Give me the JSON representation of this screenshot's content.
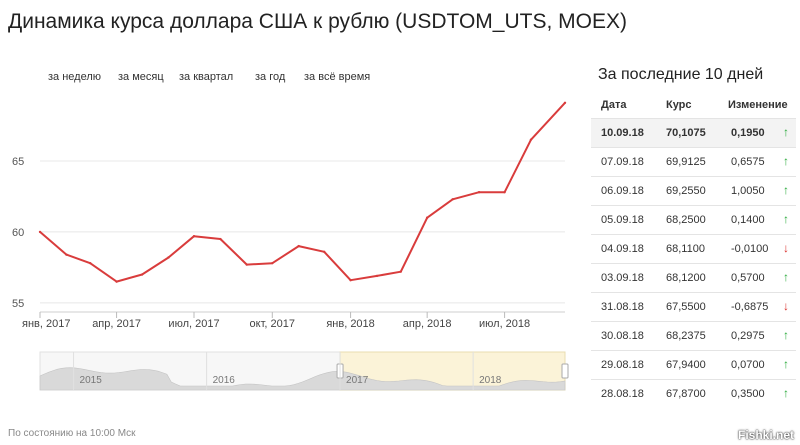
{
  "title": "Динамика курса доллара США к рублю (USDTOM_UTS, MOEX)",
  "periods": [
    {
      "label": "за неделю"
    },
    {
      "label": "за месяц"
    },
    {
      "label": "за квартал"
    },
    {
      "label": "за год"
    },
    {
      "label": "за всё время"
    }
  ],
  "chart_data": {
    "type": "line",
    "series": [
      {
        "color": "#d93c3c",
        "x": [
          "2017-01-01",
          "2017-02-01",
          "2017-03-01",
          "2017-04-01",
          "2017-05-01",
          "2017-06-01",
          "2017-07-01",
          "2017-08-01",
          "2017-09-01",
          "2017-10-01",
          "2017-11-01",
          "2017-12-01",
          "2018-01-01",
          "2018-02-01",
          "2018-03-01",
          "2018-04-01",
          "2018-05-01",
          "2018-06-01",
          "2018-07-01",
          "2018-08-01",
          "2018-09-10"
        ],
        "values": [
          60.0,
          58.4,
          57.8,
          56.5,
          57.0,
          58.2,
          59.7,
          59.5,
          57.7,
          57.8,
          59.0,
          58.6,
          56.6,
          56.9,
          57.2,
          61.0,
          62.3,
          62.8,
          62.8,
          66.5,
          69.1
        ]
      }
    ],
    "yticks": [
      55,
      60,
      65
    ],
    "ylim": [
      54.5,
      70
    ],
    "xticks": [
      {
        "date": "2017-01-01",
        "label": "янв, 2017"
      },
      {
        "date": "2017-04-01",
        "label": "апр, 2017"
      },
      {
        "date": "2017-07-01",
        "label": "июл, 2017"
      },
      {
        "date": "2017-10-01",
        "label": "окт, 2017"
      },
      {
        "date": "2018-01-01",
        "label": "янв, 2018"
      },
      {
        "date": "2018-04-01",
        "label": "апр, 2018"
      },
      {
        "date": "2018-07-01",
        "label": "июл, 2018"
      }
    ],
    "xlim": [
      "2017-01-01",
      "2018-09-10"
    ],
    "grid": true,
    "navigator": {
      "year_labels": [
        "2015",
        "2016",
        "2017",
        "2018"
      ],
      "selection": [
        "2017-01-01",
        "2018-09-10"
      ]
    }
  },
  "side": {
    "title": "За последние 10 дней",
    "headers": {
      "date": "Дата",
      "rate": "Курс",
      "change": "Изменение"
    },
    "rows": [
      {
        "date": "10.09.18",
        "rate": "70,1075",
        "change": "0,1950",
        "dir": "up",
        "arrow": "↑"
      },
      {
        "date": "07.09.18",
        "rate": "69,9125",
        "change": "0,6575",
        "dir": "up",
        "arrow": "↑"
      },
      {
        "date": "06.09.18",
        "rate": "69,2550",
        "change": "1,0050",
        "dir": "up",
        "arrow": "↑"
      },
      {
        "date": "05.09.18",
        "rate": "68,2500",
        "change": "0,1400",
        "dir": "up",
        "arrow": "↑"
      },
      {
        "date": "04.09.18",
        "rate": "68,1100",
        "change": "-0,0100",
        "dir": "down",
        "arrow": "↓"
      },
      {
        "date": "03.09.18",
        "rate": "68,1200",
        "change": "0,5700",
        "dir": "up",
        "arrow": "↑"
      },
      {
        "date": "31.08.18",
        "rate": "67,5500",
        "change": "-0,6875",
        "dir": "down",
        "arrow": "↓"
      },
      {
        "date": "30.08.18",
        "rate": "68,2375",
        "change": "0,2975",
        "dir": "up",
        "arrow": "↑"
      },
      {
        "date": "29.08.18",
        "rate": "67,9400",
        "change": "0,0700",
        "dir": "up",
        "arrow": "↑"
      },
      {
        "date": "28.08.18",
        "rate": "67,8700",
        "change": "0,3500",
        "dir": "up",
        "arrow": "↑"
      }
    ]
  },
  "footer": "По состоянию на 10:00 Мск",
  "watermark": "Fishki.net"
}
